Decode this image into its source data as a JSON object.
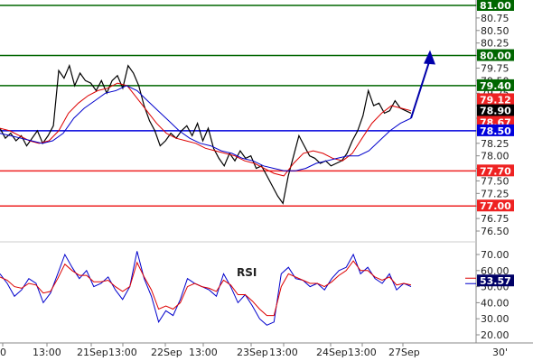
{
  "chart_data": [
    {
      "type": "line",
      "title": "",
      "ylim": [
        76.5,
        81.0
      ],
      "yticks": [
        "81.00",
        "80.75",
        "80.50",
        "80.25",
        "80.00",
        "79.75",
        "79.50",
        "79.25",
        "79.00",
        "78.75",
        "78.50",
        "78.25",
        "78.00",
        "77.75",
        "77.50",
        "77.25",
        "77.00",
        "76.75",
        "76.50"
      ],
      "grid": false,
      "series": [
        {
          "color": "#000000",
          "values": [
            78.55,
            78.35,
            78.45,
            78.3,
            78.4,
            78.2,
            78.35,
            78.5,
            78.25,
            78.4,
            78.6,
            79.7,
            79.55,
            79.8,
            79.4,
            79.65,
            79.5,
            79.45,
            79.3,
            79.5,
            79.25,
            79.5,
            79.6,
            79.35,
            79.8,
            79.65,
            79.4,
            79.0,
            78.7,
            78.5,
            78.2,
            78.3,
            78.45,
            78.35,
            78.5,
            78.6,
            78.4,
            78.65,
            78.3,
            78.55,
            78.15,
            77.95,
            77.8,
            78.05,
            77.9,
            78.1,
            77.95,
            78.0,
            77.75,
            77.8,
            77.6,
            77.4,
            77.2,
            77.05,
            77.6,
            78.0,
            78.4,
            78.2,
            78.0,
            77.95,
            77.85,
            77.9,
            77.8,
            77.85,
            77.9,
            78.05,
            78.3,
            78.5,
            78.8,
            79.3,
            79.0,
            79.05,
            78.85,
            78.9,
            79.1,
            78.95,
            78.9,
            78.85
          ]
        },
        {
          "name": "",
          "color": "#dd0000",
          "values": [
            78.55,
            78.5,
            78.4,
            78.3,
            78.25,
            78.3,
            78.5,
            78.85,
            79.05,
            79.2,
            79.3,
            79.35,
            79.45,
            79.4,
            79.15,
            78.9,
            78.65,
            78.45,
            78.35,
            78.3,
            78.25,
            78.15,
            78.1,
            78.05,
            78.0,
            77.9,
            77.85,
            77.75,
            77.65,
            77.6,
            77.85,
            78.05,
            78.1,
            78.05,
            77.95,
            77.9,
            78.05,
            78.35,
            78.65,
            78.85,
            79.0,
            78.95,
            78.9
          ]
        },
        {
          "name": "",
          "color": "#0000cc",
          "values": [
            78.45,
            78.4,
            78.35,
            78.3,
            78.25,
            78.3,
            78.45,
            78.75,
            78.95,
            79.1,
            79.25,
            79.3,
            79.4,
            79.3,
            79.1,
            78.9,
            78.7,
            78.5,
            78.35,
            78.25,
            78.2,
            78.1,
            78.05,
            77.95,
            77.9,
            77.8,
            77.75,
            77.7,
            77.7,
            77.75,
            77.85,
            77.9,
            77.95,
            78.0,
            78.0,
            78.1,
            78.3,
            78.5,
            78.65,
            78.75
          ]
        }
      ],
      "levels": [
        {
          "label": "81.00",
          "value": 81.0,
          "color": "#006600"
        },
        {
          "label": "80.00",
          "value": 80.0,
          "color": "#006600"
        },
        {
          "label": "79.40",
          "value": 79.4,
          "color": "#006600"
        },
        {
          "label": "79.12",
          "value": 79.12,
          "color": "#ee2222"
        },
        {
          "label": "78.90",
          "value": 78.9,
          "color": "#000000"
        },
        {
          "label": "78.67",
          "value": 78.67,
          "color": "#ee2222"
        },
        {
          "label": "78.50",
          "value": 78.5,
          "color": "#0000dd"
        },
        {
          "label": "77.70",
          "value": 77.7,
          "color": "#ee2222"
        },
        {
          "label": "77.00",
          "value": 77.0,
          "color": "#ee2222"
        }
      ],
      "arrow": {
        "from": [
          78.75
        ],
        "to": [
          80.0
        ],
        "color": "#0000aa"
      }
    },
    {
      "type": "line",
      "title": "RSI",
      "ylim": [
        20,
        70
      ],
      "yticks": [
        "70.00",
        "60.00",
        "50.00",
        "40.00",
        "30.00",
        "20.00"
      ],
      "current_value": "53.57",
      "series": [
        {
          "name": "",
          "color": "#0000cc",
          "values": [
            58,
            52,
            44,
            48,
            55,
            52,
            40,
            46,
            58,
            70,
            62,
            55,
            60,
            50,
            52,
            56,
            48,
            42,
            50,
            72,
            55,
            44,
            28,
            35,
            32,
            42,
            55,
            52,
            50,
            48,
            44,
            58,
            50,
            40,
            45,
            38,
            30,
            26,
            28,
            58,
            62,
            55,
            54,
            50,
            52,
            48,
            55,
            60,
            62,
            70,
            58,
            62,
            55,
            52,
            58,
            48,
            52,
            50
          ]
        },
        {
          "name": "",
          "color": "#dd0000",
          "values": [
            56,
            54,
            50,
            49,
            52,
            51,
            46,
            47,
            55,
            64,
            60,
            57,
            57,
            53,
            53,
            54,
            50,
            47,
            50,
            65,
            56,
            48,
            36,
            38,
            36,
            40,
            50,
            52,
            50,
            49,
            47,
            54,
            51,
            45,
            45,
            41,
            36,
            32,
            32,
            50,
            58,
            56,
            54,
            52,
            52,
            50,
            53,
            57,
            60,
            66,
            60,
            60,
            56,
            54,
            56,
            51,
            52,
            51
          ]
        }
      ]
    }
  ],
  "xaxis": {
    "labels": [
      "0",
      "13:00",
      "21Sep",
      "13:00",
      "22Sep",
      "13:00",
      "23Sep",
      "13:00",
      "24Sep",
      "13:00",
      "27Sep"
    ],
    "period": "30'"
  }
}
